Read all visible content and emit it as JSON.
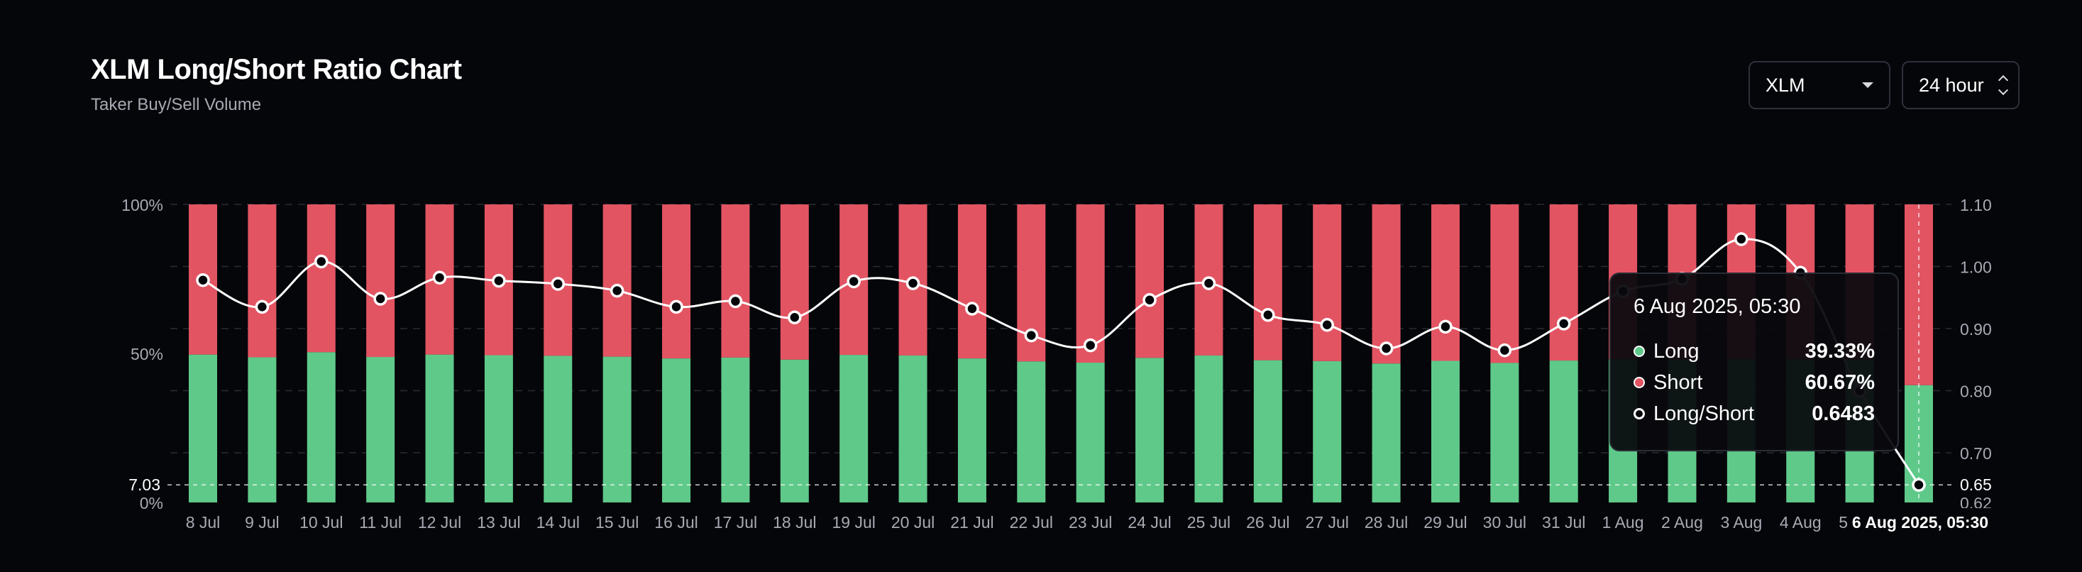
{
  "header": {
    "title": "XLM Long/Short Ratio Chart",
    "subtitle": "Taker Buy/Sell Volume"
  },
  "controls": {
    "symbol": "XLM",
    "period": "24 hour"
  },
  "tooltip": {
    "date": "6 Aug 2025, 05:30",
    "rows": [
      {
        "label": "Long",
        "value": "39.33%"
      },
      {
        "label": "Short",
        "value": "60.67%"
      },
      {
        "label": "Long/Short",
        "value": "0.6483"
      }
    ]
  },
  "crosshair": {
    "left_value": "7.03",
    "right_value": "0.65",
    "x_value": "6 Aug 2025, 05:30"
  },
  "colors": {
    "long": "#5fc98a",
    "short": "#e35462",
    "line": "#ffffff",
    "background": "#05060a"
  },
  "chart_data": {
    "type": "bar",
    "stacked": true,
    "categories": [
      "8 Jul",
      "9 Jul",
      "10 Jul",
      "11 Jul",
      "12 Jul",
      "13 Jul",
      "14 Jul",
      "15 Jul",
      "16 Jul",
      "17 Jul",
      "18 Jul",
      "19 Jul",
      "20 Jul",
      "21 Jul",
      "22 Jul",
      "23 Jul",
      "24 Jul",
      "25 Jul",
      "26 Jul",
      "27 Jul",
      "28 Jul",
      "29 Jul",
      "30 Jul",
      "31 Jul",
      "1 Aug",
      "2 Aug",
      "3 Aug",
      "4 Aug",
      "5 Aug",
      "6 Aug"
    ],
    "series": [
      {
        "name": "Long",
        "axis": "left",
        "values": [
          49.6,
          48.7,
          50.4,
          48.8,
          49.6,
          49.4,
          49.2,
          48.9,
          48.3,
          48.6,
          47.9,
          49.5,
          49.3,
          48.3,
          47.3,
          46.9,
          48.5,
          49.3,
          47.7,
          47.4,
          46.6,
          47.5,
          46.8,
          47.6,
          48.0,
          48.0,
          48.0,
          48.0,
          48.0,
          39.33
        ]
      },
      {
        "name": "Short",
        "axis": "left",
        "values": [
          50.4,
          51.3,
          49.6,
          51.2,
          50.4,
          50.6,
          50.8,
          51.1,
          51.7,
          51.4,
          52.1,
          50.5,
          50.7,
          51.7,
          52.7,
          53.1,
          51.5,
          50.7,
          52.3,
          52.6,
          53.4,
          52.5,
          53.2,
          52.4,
          52.0,
          52.0,
          52.0,
          52.0,
          52.0,
          60.67
        ]
      },
      {
        "name": "Long/Short",
        "type": "line",
        "axis": "right",
        "values": [
          0.978,
          0.935,
          1.008,
          0.948,
          0.982,
          0.977,
          0.972,
          0.961,
          0.935,
          0.944,
          0.918,
          0.976,
          0.973,
          0.932,
          0.889,
          0.873,
          0.946,
          0.973,
          0.922,
          0.906,
          0.868,
          0.903,
          0.865,
          0.908,
          0.96,
          0.98,
          1.044,
          0.99,
          0.8,
          0.6483
        ]
      }
    ],
    "y_left": {
      "ticks": [
        "0%",
        "50%",
        "100%"
      ],
      "range": [
        0,
        100
      ]
    },
    "y_right": {
      "ticks": [
        "0.62",
        "0.70",
        "0.80",
        "0.90",
        "1.00",
        "1.10"
      ],
      "range": [
        0.62,
        1.1
      ]
    },
    "grid": true
  }
}
